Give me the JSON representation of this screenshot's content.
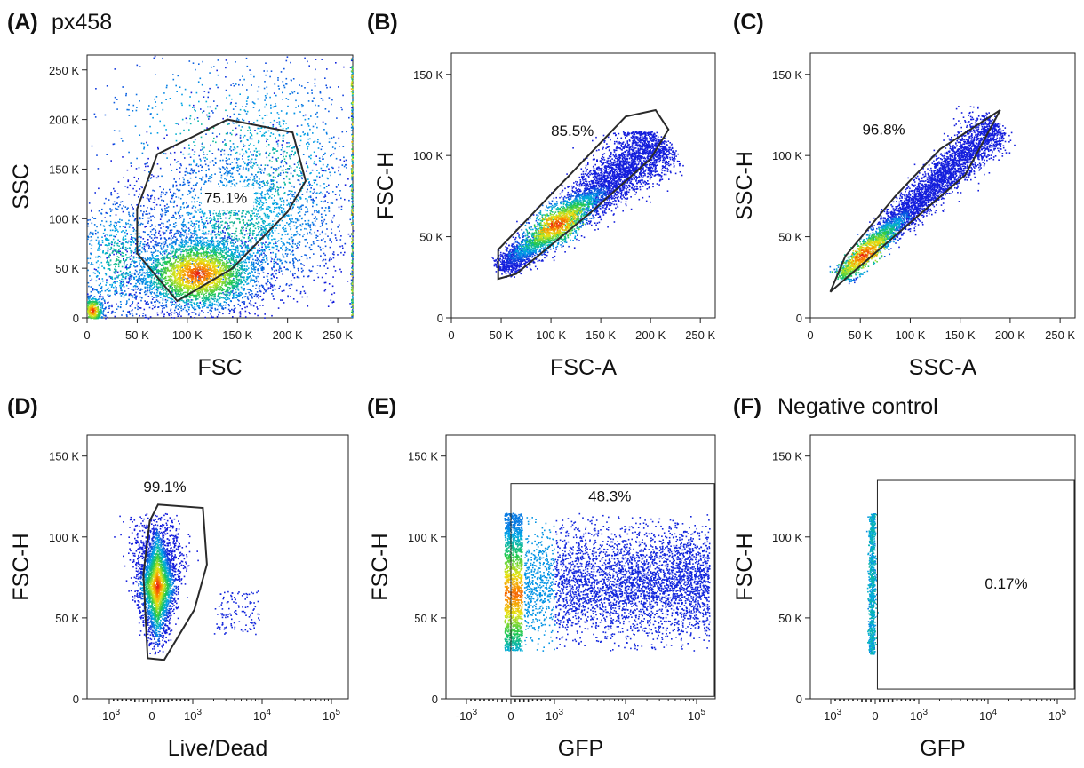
{
  "figure": {
    "panels_order": [
      "A",
      "B",
      "C",
      "D",
      "E",
      "F"
    ]
  },
  "chart_data": [
    {
      "id": "A",
      "type": "scatter",
      "label": "(A)",
      "title": "px458",
      "xlabel": "FSC",
      "ylabel": "SSC",
      "xscale": "linear",
      "xlim": [
        0,
        265000
      ],
      "ylim": [
        0,
        265000
      ],
      "xticks": [
        {
          "v": 0,
          "t": "0"
        },
        {
          "v": 50000,
          "t": "50 K"
        },
        {
          "v": 100000,
          "t": "100 K"
        },
        {
          "v": 150000,
          "t": "150 K"
        },
        {
          "v": 200000,
          "t": "200 K"
        },
        {
          "v": 250000,
          "t": "250 K"
        }
      ],
      "yticks": [
        {
          "v": 0,
          "t": "0"
        },
        {
          "v": 50000,
          "t": "50 K"
        },
        {
          "v": 100000,
          "t": "100 K"
        },
        {
          "v": 150000,
          "t": "150 K"
        },
        {
          "v": 200000,
          "t": "200 K"
        },
        {
          "v": 250000,
          "t": "250 K"
        }
      ],
      "gate": {
        "type": "polygon",
        "percent": "75.1%",
        "label_at": [
          117000,
          116000
        ],
        "points": [
          [
            90000,
            17000
          ],
          [
            145000,
            50000
          ],
          [
            200000,
            107000
          ],
          [
            218000,
            138000
          ],
          [
            205000,
            187000
          ],
          [
            140000,
            200000
          ],
          [
            70000,
            165000
          ],
          [
            50000,
            110000
          ],
          [
            50000,
            65000
          ]
        ]
      },
      "population": {
        "clusters": [
          {
            "cx": 110000,
            "cy": 45000,
            "sx": 33000,
            "sy": 20000,
            "n": 3200,
            "hot": true
          },
          {
            "cx": 150000,
            "cy": 95000,
            "sx": 50000,
            "sy": 40000,
            "n": 2000
          },
          {
            "cx": 30000,
            "cy": 60000,
            "sx": 25000,
            "sy": 35000,
            "n": 800
          },
          {
            "cx": 5000,
            "cy": 8000,
            "sx": 6000,
            "sy": 8000,
            "n": 500,
            "hot": true
          },
          {
            "cx": 190000,
            "cy": 150000,
            "sx": 45000,
            "sy": 60000,
            "n": 900
          },
          {
            "cx": 130000,
            "cy": 190000,
            "sx": 70000,
            "sy": 45000,
            "n": 400
          }
        ],
        "edge_x": 263000
      }
    },
    {
      "id": "B",
      "type": "scatter",
      "label": "(B)",
      "title": "",
      "xlabel": "FSC-A",
      "ylabel": "FSC-H",
      "xscale": "linear",
      "xlim": [
        0,
        265000
      ],
      "ylim": [
        0,
        163000
      ],
      "xticks": [
        {
          "v": 0,
          "t": "0"
        },
        {
          "v": 50000,
          "t": "50 K"
        },
        {
          "v": 100000,
          "t": "100 K"
        },
        {
          "v": 150000,
          "t": "150 K"
        },
        {
          "v": 200000,
          "t": "200 K"
        },
        {
          "v": 250000,
          "t": "250 K"
        }
      ],
      "yticks": [
        {
          "v": 0,
          "t": "0"
        },
        {
          "v": 50000,
          "t": "50 K"
        },
        {
          "v": 100000,
          "t": "100 K"
        },
        {
          "v": 150000,
          "t": "150 K"
        }
      ],
      "gate": {
        "type": "polygon",
        "percent": "85.5%",
        "label_at": [
          100000,
          112000
        ],
        "points": [
          [
            47000,
            24000
          ],
          [
            65000,
            27000
          ],
          [
            140000,
            65000
          ],
          [
            200000,
            98000
          ],
          [
            218000,
            116000
          ],
          [
            205000,
            128000
          ],
          [
            175000,
            124000
          ],
          [
            47000,
            42000
          ]
        ]
      },
      "population": {
        "diagonal": {
          "x0": 50000,
          "y0": 30000,
          "x1": 210000,
          "y1": 110000,
          "spread": 8000,
          "n": 5000,
          "hot_at": 0.35,
          "cap": 115000
        }
      }
    },
    {
      "id": "C",
      "type": "scatter",
      "label": "(C)",
      "title": "",
      "xlabel": "SSC-A",
      "ylabel": "SSC-H",
      "xscale": "linear",
      "xlim": [
        0,
        265000
      ],
      "ylim": [
        0,
        163000
      ],
      "xticks": [
        {
          "v": 0,
          "t": "0"
        },
        {
          "v": 50000,
          "t": "50 K"
        },
        {
          "v": 100000,
          "t": "100 K"
        },
        {
          "v": 150000,
          "t": "150 K"
        },
        {
          "v": 200000,
          "t": "200 K"
        },
        {
          "v": 250000,
          "t": "250 K"
        }
      ],
      "yticks": [
        {
          "v": 0,
          "t": "0"
        },
        {
          "v": 50000,
          "t": "50 K"
        },
        {
          "v": 100000,
          "t": "100 K"
        },
        {
          "v": 150000,
          "t": "150 K"
        }
      ],
      "gate": {
        "type": "polygon",
        "percent": "96.8%",
        "label_at": [
          52000,
          113000
        ],
        "points": [
          [
            20000,
            16000
          ],
          [
            155000,
            88000
          ],
          [
            190000,
            128000
          ],
          [
            130000,
            104000
          ],
          [
            85000,
            75000
          ],
          [
            35000,
            38000
          ]
        ]
      },
      "population": {
        "diagonal": {
          "x0": 30000,
          "y0": 25000,
          "x1": 185000,
          "y1": 120000,
          "spread": 6000,
          "n": 4200,
          "hot_at": 0.15,
          "cap": 135000
        }
      }
    },
    {
      "id": "D",
      "type": "scatter",
      "label": "(D)",
      "title": "",
      "xlabel": "Live/Dead",
      "ylabel": "FSC-H",
      "xscale": "biexponential",
      "xlim": [
        -2000,
        300000
      ],
      "ylim": [
        0,
        163000
      ],
      "xticks": [
        {
          "v": -1000,
          "t": "-10",
          "sup": "3"
        },
        {
          "v": 0,
          "t": "0"
        },
        {
          "v": 1000,
          "t": "10",
          "sup": "3"
        },
        {
          "v": 10000,
          "t": "10",
          "sup": "4"
        },
        {
          "v": 100000,
          "t": "10",
          "sup": "5"
        }
      ],
      "yticks": [
        {
          "v": 0,
          "t": "0"
        },
        {
          "v": 50000,
          "t": "50 K"
        },
        {
          "v": 100000,
          "t": "100 K"
        },
        {
          "v": 150000,
          "t": "150 K"
        }
      ],
      "gate": {
        "type": "polygon",
        "percent": "99.1%",
        "label_at": [
          -200,
          128000
        ],
        "points": [
          [
            -100,
            25000
          ],
          [
            300,
            24000
          ],
          [
            1050,
            55000
          ],
          [
            1600,
            83000
          ],
          [
            1400,
            118000
          ],
          [
            150,
            120000
          ],
          [
            -50,
            110000
          ],
          [
            -200,
            77000
          ]
        ]
      },
      "population": {
        "column": {
          "cx": 120,
          "sx": 200,
          "ymin": 32000,
          "ymax": 115000,
          "n": 3000,
          "hot": true,
          "tail": {
            "x": [
              2000,
              9000
            ],
            "y": [
              40000,
              67000
            ],
            "n": 120
          }
        }
      }
    },
    {
      "id": "E",
      "type": "scatter",
      "label": "(E)",
      "title": "",
      "xlabel": "GFP",
      "ylabel": "FSC-H",
      "xscale": "biexponential",
      "xlim": [
        -2000,
        300000
      ],
      "ylim": [
        0,
        163000
      ],
      "xticks": [
        {
          "v": -1000,
          "t": "-10",
          "sup": "3"
        },
        {
          "v": 0,
          "t": "0"
        },
        {
          "v": 1000,
          "t": "10",
          "sup": "3"
        },
        {
          "v": 10000,
          "t": "10",
          "sup": "4"
        },
        {
          "v": 100000,
          "t": "10",
          "sup": "5"
        }
      ],
      "yticks": [
        {
          "v": 0,
          "t": "0"
        },
        {
          "v": 50000,
          "t": "50 K"
        },
        {
          "v": 100000,
          "t": "100 K"
        },
        {
          "v": 150000,
          "t": "150 K"
        }
      ],
      "gate": {
        "type": "rect",
        "percent": "48.3%",
        "label_at": [
          3000,
          122000
        ],
        "x0": 0,
        "y0": 1500,
        "x1": 300000,
        "y1": 133000
      },
      "population": {
        "spread": {
          "xmin": 0,
          "xmax": 150000,
          "ymin": 30000,
          "ymax": 115000,
          "n": 4000,
          "wall_n": 1500
        }
      }
    },
    {
      "id": "F",
      "type": "scatter",
      "label": "(F)",
      "title": "Negative control",
      "xlabel": "GFP",
      "ylabel": "FSC-H",
      "xscale": "biexponential",
      "xlim": [
        -2000,
        300000
      ],
      "ylim": [
        0,
        163000
      ],
      "xticks": [
        {
          "v": -1000,
          "t": "-10",
          "sup": "3"
        },
        {
          "v": 0,
          "t": "0"
        },
        {
          "v": 1000,
          "t": "10",
          "sup": "3"
        },
        {
          "v": 10000,
          "t": "10",
          "sup": "4"
        },
        {
          "v": 100000,
          "t": "10",
          "sup": "5"
        }
      ],
      "yticks": [
        {
          "v": 0,
          "t": "0"
        },
        {
          "v": 50000,
          "t": "50 K"
        },
        {
          "v": 100000,
          "t": "100 K"
        },
        {
          "v": 150000,
          "t": "150 K"
        }
      ],
      "gate": {
        "type": "rect",
        "percent": "0.17%",
        "label_at": [
          9000,
          68000
        ],
        "x0": 50,
        "y0": 6000,
        "x1": 300000,
        "y1": 135000
      },
      "population": {
        "line": {
          "cx": -80,
          "ymin": 28000,
          "ymax": 115000,
          "n": 900
        }
      }
    }
  ]
}
